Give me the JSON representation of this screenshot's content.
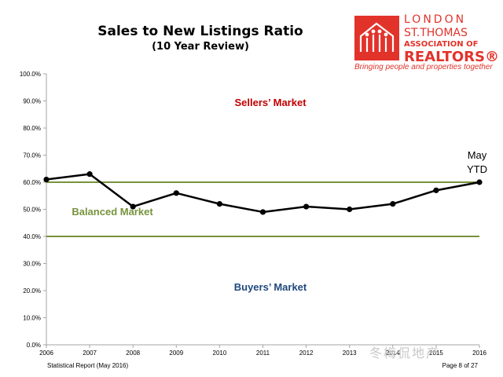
{
  "header": {
    "title": "Sales to New Listings Ratio",
    "subtitle": "(10 Year Review)"
  },
  "logo": {
    "line1": "LONDON",
    "line2": "ST.THOMAS",
    "line3": "ASSOCIATION OF",
    "line4": "REALTORS®",
    "tagline": "Bringing people and properties together",
    "color": "#e2332b"
  },
  "footer": {
    "left": "Statistical Report (May 2016)",
    "right": "Page 8 of 27"
  },
  "watermark": "冬梅侃地产",
  "chart_data": {
    "type": "line",
    "title": "Sales to New Listings Ratio",
    "subtitle": "(10 Year Review)",
    "x": [
      "2006",
      "2007",
      "2008",
      "2009",
      "2010",
      "2011",
      "2012",
      "2013",
      "2014",
      "2015",
      "2016"
    ],
    "series": [
      {
        "values": [
          61,
          63,
          51,
          56,
          52,
          49,
          51,
          50,
          52,
          57,
          60
        ],
        "color": "#000000"
      }
    ],
    "ylim": [
      0,
      100
    ],
    "yticks": [
      "0.0%",
      "10.0%",
      "20.0%",
      "30.0%",
      "40.0%",
      "50.0%",
      "60.0%",
      "70.0%",
      "80.0%",
      "90.0%",
      "100.0%"
    ],
    "reference_lines": [
      {
        "value": 60,
        "color": "#77933c"
      },
      {
        "value": 40,
        "color": "#77933c"
      }
    ],
    "annotations": [
      {
        "text": "Sellers’ Market",
        "color": "#c00000"
      },
      {
        "text": "Balanced Market",
        "color": "#77933c"
      },
      {
        "text": "Buyers’ Market",
        "color": "#1f497d"
      },
      {
        "text_lines": [
          "May",
          "YTD"
        ],
        "color": "#000000"
      }
    ],
    "grid": false
  }
}
